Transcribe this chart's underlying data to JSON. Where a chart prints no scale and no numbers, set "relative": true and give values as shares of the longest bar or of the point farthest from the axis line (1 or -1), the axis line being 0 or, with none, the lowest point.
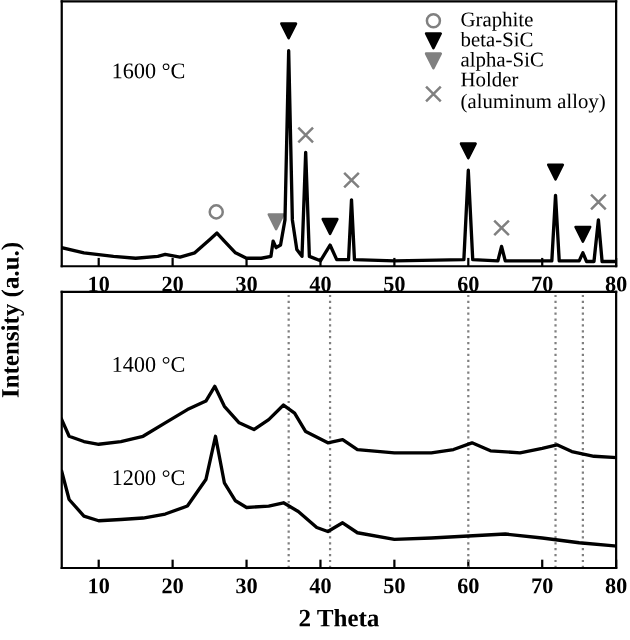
{
  "chart_data": [
    {
      "type": "line",
      "relative": true,
      "xlim": [
        5,
        80
      ],
      "xticks": [
        10,
        20,
        30,
        40,
        50,
        60,
        70,
        80
      ],
      "tick_labels": "x",
      "legend": "top right",
      "ylabel": "Intensity (a.u.)",
      "annotations": [
        "1600 °C"
      ],
      "series": [
        {
          "color": "#000000",
          "x": [
            5,
            8,
            12,
            15,
            18,
            19,
            21,
            23,
            25,
            26,
            27,
            28.5,
            30,
            32,
            33.3,
            33.6,
            34,
            34.6,
            35.2,
            35.7,
            36.2,
            36.8,
            37.5,
            38,
            38.5,
            40,
            41.3,
            42.2,
            43.8,
            44.2,
            44.6,
            50,
            59.4,
            60,
            60.6,
            64,
            64.5,
            65,
            71.3,
            71.8,
            72.3,
            75,
            75.5,
            76,
            77,
            77.6,
            78.1,
            80
          ],
          "values": [
            0.079,
            0.057,
            0.042,
            0.034,
            0.042,
            0.05,
            0.039,
            0.057,
            0.113,
            0.141,
            0.107,
            0.057,
            0.034,
            0.034,
            0.042,
            0.107,
            0.079,
            0.09,
            0.197,
            0.916,
            0.197,
            0.071,
            0.042,
            0.484,
            0.042,
            0.023,
            0.09,
            0.028,
            0.028,
            0.282,
            0.028,
            0.023,
            0.028,
            0.408,
            0.028,
            0.023,
            0.084,
            0.023,
            0.023,
            0.301,
            0.023,
            0.023,
            0.057,
            0.02,
            0.02,
            0.197,
            0.02,
            0.02
          ]
        },
        {
          "type": "scatter",
          "name": "Graphite",
          "marker": "circle",
          "color": "#808080",
          "x": [
            25.9
          ],
          "values": [
            0.231
          ]
        },
        {
          "type": "scatter",
          "name": "beta-SiC",
          "marker": "triangle",
          "color": "#000000",
          "x": [
            35.7,
            41.3,
            60,
            71.8,
            75.5
          ],
          "values": [
            1,
            0.169,
            0.49,
            0.4,
            0.136
          ]
        },
        {
          "type": "scatter",
          "name": "alpha-SiC",
          "marker": "triangle",
          "color": "#808080",
          "x": [
            34
          ],
          "values": [
            0.189
          ]
        },
        {
          "type": "scatter",
          "name": "Holder\n(aluminum alloy)",
          "marker": "cross",
          "color": "#808080",
          "x": [
            38,
            44.2,
            64.5,
            77.6
          ],
          "values": [
            0.558,
            0.366,
            0.163,
            0.273
          ]
        }
      ]
    },
    {
      "type": "line",
      "relative": true,
      "xlim": [
        5,
        80
      ],
      "xticks": [
        10,
        20,
        30,
        40,
        50,
        60,
        70,
        80
      ],
      "tick_labels": "x",
      "xlabel": "2 Theta",
      "annotations": [
        "1400 °C",
        "1200 °C"
      ],
      "ref_lines": [
        {
          "axis": "x",
          "value": 35.7,
          "color": "#808080",
          "line_style": "dotted"
        },
        {
          "axis": "x",
          "value": 41.3,
          "color": "#808080",
          "line_style": "dotted"
        },
        {
          "axis": "x",
          "value": 60,
          "color": "#808080",
          "line_style": "dotted"
        },
        {
          "axis": "x",
          "value": 71.8,
          "color": "#808080",
          "line_style": "dotted"
        },
        {
          "axis": "x",
          "value": 75.5,
          "color": "#808080",
          "line_style": "dotted"
        }
      ],
      "series": [
        {
          "color": "#000000",
          "x": [
            5,
            6,
            8,
            10,
            13,
            16,
            19,
            22,
            24.5,
            25.7,
            27,
            29,
            31,
            33,
            35,
            36.5,
            38,
            41,
            43,
            45,
            50,
            55,
            58,
            60.5,
            63,
            67,
            70,
            72,
            74,
            77,
            80
          ],
          "values": [
            0.817,
            0.725,
            0.696,
            0.681,
            0.696,
            0.725,
            0.799,
            0.872,
            0.919,
            1,
            0.89,
            0.799,
            0.762,
            0.817,
            0.897,
            0.853,
            0.751,
            0.689,
            0.707,
            0.652,
            0.634,
            0.634,
            0.652,
            0.689,
            0.645,
            0.634,
            0.659,
            0.678,
            0.641,
            0.615,
            0.608
          ]
        },
        {
          "color": "#000000",
          "x": [
            5,
            6,
            8,
            10,
            13,
            16,
            19,
            22,
            24.5,
            25.8,
            27,
            28.5,
            30,
            33,
            35,
            37,
            39.5,
            41,
            43,
            45,
            50,
            55,
            60,
            65,
            70,
            75,
            80
          ],
          "values": [
            0.531,
            0.377,
            0.286,
            0.26,
            0.267,
            0.275,
            0.297,
            0.341,
            0.487,
            0.725,
            0.469,
            0.37,
            0.333,
            0.341,
            0.359,
            0.311,
            0.223,
            0.201,
            0.249,
            0.194,
            0.158,
            0.165,
            0.176,
            0.187,
            0.165,
            0.139,
            0.121
          ]
        }
      ]
    }
  ]
}
